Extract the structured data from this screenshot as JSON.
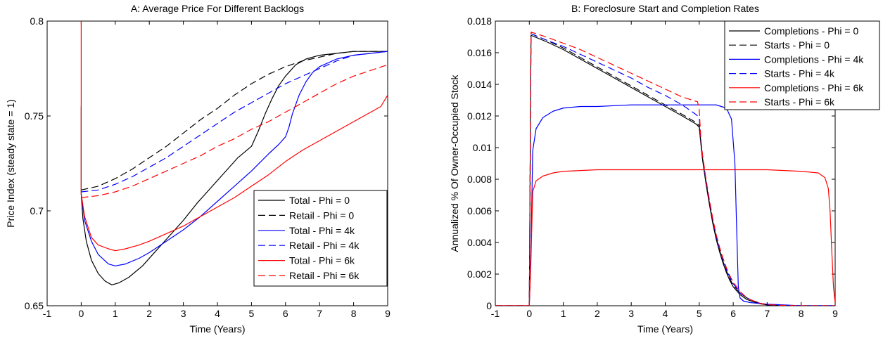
{
  "chart_data": [
    {
      "type": "line",
      "title": "A: Average Price For Different Backlogs",
      "xlabel": "Time (Years)",
      "ylabel": "Price Index (steady state = 1)",
      "xlim": [
        -1,
        9
      ],
      "ylim": [
        0.65,
        0.8
      ],
      "xticks": [
        "-1",
        "0",
        "1",
        "2",
        "3",
        "4",
        "5",
        "6",
        "7",
        "8",
        "9"
      ],
      "yticks": [
        "0.65",
        "0.7",
        "0.75",
        "0.8"
      ],
      "legend_position": "bottom-right",
      "series": [
        {
          "name": "Total - Phi = 0",
          "color": "#000000",
          "dash": "solid",
          "x": [
            0.0,
            0.05,
            0.15,
            0.3,
            0.5,
            0.7,
            0.9,
            1.1,
            1.4,
            1.8,
            2.2,
            2.6,
            3.0,
            3.4,
            3.8,
            4.2,
            4.6,
            5.0,
            5.2,
            5.4,
            5.6,
            5.8,
            6.0,
            6.3,
            6.6,
            7.0,
            7.5,
            8.0,
            8.5,
            9.0
          ],
          "y": [
            0.709,
            0.696,
            0.684,
            0.674,
            0.667,
            0.663,
            0.661,
            0.662,
            0.665,
            0.671,
            0.679,
            0.687,
            0.695,
            0.704,
            0.712,
            0.72,
            0.728,
            0.734,
            0.742,
            0.751,
            0.759,
            0.766,
            0.771,
            0.777,
            0.78,
            0.782,
            0.783,
            0.784,
            0.784,
            0.784
          ]
        },
        {
          "name": "Retail - Phi = 0",
          "color": "#000000",
          "dash": "dashed",
          "x": [
            0.0,
            0.5,
            1.0,
            1.5,
            2.0,
            2.5,
            3.0,
            3.5,
            4.0,
            4.5,
            5.0,
            5.5,
            6.0,
            6.5,
            7.0,
            7.5,
            8.0,
            8.5,
            9.0
          ],
          "y": [
            0.711,
            0.713,
            0.717,
            0.722,
            0.728,
            0.734,
            0.741,
            0.748,
            0.754,
            0.761,
            0.767,
            0.772,
            0.776,
            0.779,
            0.781,
            0.783,
            0.784,
            0.784,
            0.784
          ]
        },
        {
          "name": "Total - Phi = 4k",
          "color": "#0000ff",
          "dash": "solid",
          "x": [
            0.0,
            0.1,
            0.3,
            0.5,
            0.8,
            1.0,
            1.3,
            1.7,
            2.0,
            2.5,
            3.0,
            3.5,
            4.0,
            4.5,
            5.0,
            5.5,
            5.8,
            6.0,
            6.1,
            6.2,
            6.4,
            6.6,
            6.8,
            7.0,
            7.5,
            8.0,
            8.5,
            9.0
          ],
          "y": [
            0.709,
            0.695,
            0.684,
            0.677,
            0.672,
            0.671,
            0.672,
            0.675,
            0.678,
            0.684,
            0.69,
            0.697,
            0.705,
            0.713,
            0.721,
            0.73,
            0.735,
            0.739,
            0.744,
            0.751,
            0.761,
            0.768,
            0.773,
            0.776,
            0.78,
            0.782,
            0.783,
            0.784
          ]
        },
        {
          "name": "Retail - Phi = 4k",
          "color": "#0000ff",
          "dash": "dashed",
          "x": [
            0.0,
            0.5,
            1.0,
            1.5,
            2.0,
            2.5,
            3.0,
            3.5,
            4.0,
            4.5,
            5.0,
            5.5,
            6.0,
            6.5,
            7.0,
            7.5,
            8.0,
            8.5,
            9.0
          ],
          "y": [
            0.71,
            0.711,
            0.714,
            0.718,
            0.723,
            0.728,
            0.734,
            0.74,
            0.746,
            0.752,
            0.757,
            0.762,
            0.767,
            0.771,
            0.775,
            0.779,
            0.782,
            0.783,
            0.784
          ]
        },
        {
          "name": "Total - Phi = 6k",
          "color": "#ff0000",
          "dash": "solid",
          "x": [
            0.0,
            0.1,
            0.3,
            0.5,
            0.8,
            1.0,
            1.3,
            1.7,
            2.0,
            2.5,
            3.0,
            3.5,
            4.0,
            4.5,
            5.0,
            5.5,
            6.0,
            6.5,
            7.0,
            7.5,
            8.0,
            8.5,
            8.8,
            9.0
          ],
          "y": [
            0.709,
            0.697,
            0.686,
            0.682,
            0.68,
            0.679,
            0.68,
            0.682,
            0.684,
            0.688,
            0.692,
            0.697,
            0.702,
            0.707,
            0.713,
            0.719,
            0.726,
            0.732,
            0.737,
            0.742,
            0.747,
            0.752,
            0.755,
            0.761
          ]
        },
        {
          "name": "Retail - Phi = 6k",
          "color": "#ff0000",
          "dash": "dashed",
          "x": [
            0.0,
            0.5,
            1.0,
            1.5,
            2.0,
            2.5,
            3.0,
            3.5,
            4.0,
            4.5,
            5.0,
            5.5,
            6.0,
            6.5,
            7.0,
            7.5,
            8.0,
            8.5,
            9.0
          ],
          "y": [
            0.707,
            0.708,
            0.71,
            0.713,
            0.717,
            0.721,
            0.725,
            0.729,
            0.734,
            0.738,
            0.743,
            0.747,
            0.752,
            0.757,
            0.762,
            0.767,
            0.771,
            0.774,
            0.777
          ]
        }
      ],
      "initial_spike": [
        {
          "color": "#000000",
          "x": [
            0.0,
            0.0
          ],
          "y": [
            0.755,
            0.709
          ]
        },
        {
          "color": "#ff0000",
          "x": [
            0.0,
            0.0
          ],
          "y": [
            0.8,
            0.709
          ]
        }
      ]
    },
    {
      "type": "line",
      "title": "B: Foreclosure Start and Completion Rates",
      "xlabel": "Time (Years)",
      "ylabel": "Annualized % Of Owner-Occupied Stock",
      "xlim": [
        -1,
        9
      ],
      "ylim": [
        0,
        0.018
      ],
      "xticks": [
        "-1",
        "0",
        "1",
        "2",
        "3",
        "4",
        "5",
        "6",
        "7",
        "8",
        "9"
      ],
      "yticks": [
        "0",
        "0.002",
        "0.004",
        "0.006",
        "0.008",
        "0.01",
        "0.012",
        "0.014",
        "0.016",
        "0.018"
      ],
      "legend_position": "top-right",
      "series": [
        {
          "name": "Completions - Phi = 0",
          "color": "#000000",
          "dash": "solid",
          "x": [
            -1.0,
            -0.02,
            0.0,
            0.05,
            0.5,
            1.0,
            1.5,
            2.0,
            2.5,
            3.0,
            3.5,
            4.0,
            4.5,
            4.9,
            5.0,
            5.05,
            5.1,
            5.2,
            5.3,
            5.4,
            5.5,
            5.6,
            5.7,
            5.8,
            5.9,
            6.0,
            6.2,
            6.4,
            6.6,
            6.8,
            7.0,
            7.5,
            8.0,
            9.0
          ],
          "y": [
            0.0,
            0.0,
            0.0,
            0.0171,
            0.0167,
            0.0162,
            0.0156,
            0.015,
            0.0144,
            0.0138,
            0.0132,
            0.0126,
            0.012,
            0.0115,
            0.0113,
            0.0102,
            0.0092,
            0.0077,
            0.0064,
            0.0052,
            0.0042,
            0.0034,
            0.0027,
            0.0021,
            0.0016,
            0.0012,
            0.0007,
            0.0004,
            0.00025,
            0.00012,
            5e-05,
            1e-05,
            0.0,
            0.0
          ]
        },
        {
          "name": "Starts - Phi = 0",
          "color": "#000000",
          "dash": "dashed",
          "x": [
            -1.0,
            -0.02,
            0.0,
            0.05,
            0.5,
            1.0,
            1.5,
            2.0,
            2.5,
            3.0,
            3.5,
            4.0,
            4.5,
            4.9,
            5.0,
            5.05,
            5.1,
            5.2,
            5.3,
            5.4,
            5.5,
            5.6,
            5.7,
            5.8,
            5.9,
            6.0,
            6.2,
            6.4,
            6.6,
            6.8,
            7.0,
            7.5,
            8.0,
            9.0
          ],
          "y": [
            0.0,
            0.0,
            0.0,
            0.0172,
            0.0168,
            0.0163,
            0.0157,
            0.0151,
            0.0145,
            0.0139,
            0.0133,
            0.0127,
            0.0121,
            0.0116,
            0.0114,
            0.0103,
            0.0093,
            0.0078,
            0.0065,
            0.0053,
            0.0043,
            0.0035,
            0.0028,
            0.0022,
            0.0017,
            0.0013,
            0.0008,
            0.0005,
            0.0003,
            0.00015,
            7e-05,
            2e-05,
            0.0,
            0.0
          ]
        },
        {
          "name": "Completions - Phi = 4k",
          "color": "#0000ff",
          "dash": "solid",
          "x": [
            -1.0,
            -0.02,
            0.0,
            0.05,
            0.1,
            0.2,
            0.4,
            0.7,
            1.0,
            1.5,
            2.0,
            3.0,
            4.0,
            5.0,
            5.5,
            5.8,
            5.95,
            6.05,
            6.1,
            6.15,
            6.2,
            6.3,
            6.5,
            7.0,
            8.0,
            9.0
          ],
          "y": [
            0.0,
            0.0,
            0.0,
            0.0035,
            0.0098,
            0.0112,
            0.0119,
            0.0123,
            0.0125,
            0.0126,
            0.0126,
            0.0127,
            0.0127,
            0.0127,
            0.0127,
            0.0125,
            0.0118,
            0.009,
            0.005,
            0.0012,
            0.0005,
            0.0003,
            0.0002,
            0.0001,
            0.0,
            0.0
          ]
        },
        {
          "name": "Starts - Phi = 4k",
          "color": "#0000ff",
          "dash": "dashed",
          "x": [
            -1.0,
            -0.02,
            0.0,
            0.05,
            0.5,
            1.0,
            1.5,
            2.0,
            2.5,
            3.0,
            3.5,
            4.0,
            4.5,
            4.9,
            5.0,
            5.05,
            5.1,
            5.2,
            5.3,
            5.4,
            5.5,
            5.6,
            5.7,
            5.8,
            5.9,
            6.0,
            6.2,
            6.4,
            6.6,
            6.8,
            7.0,
            7.5,
            8.0,
            9.0
          ],
          "y": [
            0.0,
            0.0,
            0.0,
            0.0172,
            0.0168,
            0.0164,
            0.0159,
            0.0154,
            0.0149,
            0.0144,
            0.0138,
            0.0133,
            0.0127,
            0.0121,
            0.0119,
            0.0104,
            0.0094,
            0.0079,
            0.0066,
            0.0054,
            0.0044,
            0.0036,
            0.0029,
            0.0023,
            0.0018,
            0.0014,
            0.0008,
            0.0005,
            0.0003,
            0.00015,
            7e-05,
            2e-05,
            0.0,
            0.0
          ]
        },
        {
          "name": "Completions - Phi = 6k",
          "color": "#ff0000",
          "dash": "solid",
          "x": [
            -1.0,
            -0.02,
            0.0,
            0.05,
            0.1,
            0.2,
            0.4,
            0.7,
            1.0,
            2.0,
            3.0,
            4.0,
            5.0,
            6.0,
            7.0,
            8.0,
            8.5,
            8.7,
            8.8,
            8.85,
            8.9,
            8.95,
            9.0
          ],
          "y": [
            0.0,
            0.0,
            0.0,
            0.003,
            0.0072,
            0.0079,
            0.0082,
            0.0084,
            0.0085,
            0.0086,
            0.0086,
            0.0086,
            0.0086,
            0.0086,
            0.0086,
            0.0085,
            0.0084,
            0.0081,
            0.0074,
            0.006,
            0.0035,
            0.0012,
            0.0002
          ]
        },
        {
          "name": "Starts - Phi = 6k",
          "color": "#ff0000",
          "dash": "dashed",
          "x": [
            -1.0,
            -0.02,
            0.0,
            0.05,
            0.5,
            1.0,
            1.5,
            2.0,
            2.5,
            3.0,
            3.5,
            4.0,
            4.5,
            4.95,
            5.0,
            5.05,
            5.1,
            5.2,
            5.3,
            5.4,
            5.5,
            5.6,
            5.7,
            5.8,
            5.9,
            6.0,
            6.2,
            6.4,
            6.6,
            6.8,
            7.0,
            7.5,
            8.0,
            9.0
          ],
          "y": [
            0.0,
            0.0,
            0.0,
            0.0173,
            0.017,
            0.0166,
            0.0162,
            0.0157,
            0.0152,
            0.0147,
            0.0142,
            0.0137,
            0.0132,
            0.0129,
            0.0124,
            0.0105,
            0.0095,
            0.008,
            0.0067,
            0.0055,
            0.0045,
            0.0037,
            0.003,
            0.0024,
            0.0019,
            0.0015,
            0.0009,
            0.0005,
            0.0003,
            0.00015,
            7e-05,
            2e-05,
            0.0,
            0.0
          ]
        }
      ]
    }
  ]
}
